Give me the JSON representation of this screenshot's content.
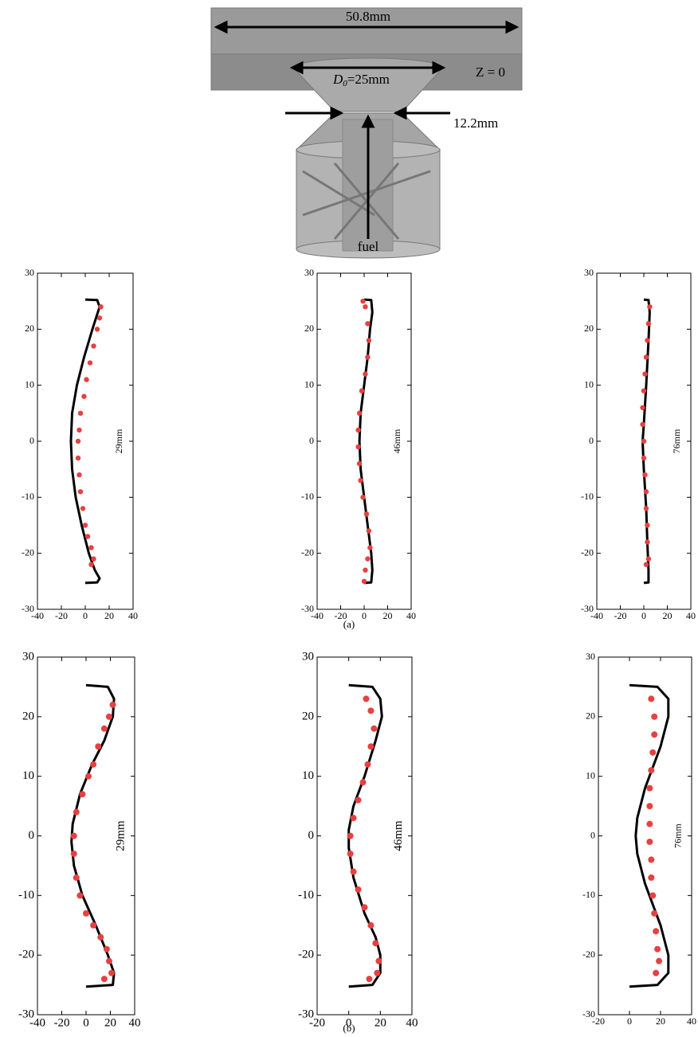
{
  "diagram": {
    "width": "50.8mm",
    "d_symbol": "D",
    "d_subscript": "0",
    "d_value": "=25mm",
    "plane": "Z = 0",
    "throat": "12.2mm",
    "inlet": "fuel"
  },
  "panel_labels": [
    "(a)",
    "(b)"
  ],
  "chart_data": [
    {
      "type": "scatter",
      "annotation": "29mm",
      "xlim": [
        -40,
        40
      ],
      "ylim": [
        -30,
        30
      ],
      "xticks": [
        -40,
        -20,
        0,
        20,
        40
      ],
      "yticks": [
        -30,
        -20,
        -10,
        0,
        10,
        20,
        30
      ],
      "series": [
        {
          "kind": "line",
          "color": "#000000",
          "x": [
            0,
            10,
            12,
            6,
            -1,
            -7,
            -11,
            -12,
            -11,
            -8,
            -3,
            3,
            8,
            12,
            10,
            0
          ],
          "y": [
            25.3,
            25.2,
            24,
            20,
            15,
            10,
            5,
            0,
            -5,
            -10,
            -15,
            -20,
            -23,
            -24.5,
            -25.2,
            -25.3
          ]
        },
        {
          "kind": "points",
          "color": "#e84040",
          "x": [
            13,
            12,
            10,
            7,
            4,
            1,
            -1,
            -4,
            -5,
            -6,
            -6,
            -5,
            -4,
            -2,
            0,
            2,
            5,
            7,
            5
          ],
          "y": [
            24,
            22,
            20,
            17,
            14,
            11,
            8,
            5,
            2,
            0,
            -3,
            -6,
            -9,
            -12,
            -15,
            -17,
            -19,
            -21,
            -22
          ]
        }
      ]
    },
    {
      "type": "scatter",
      "annotation": "46mm",
      "xlim": [
        -40,
        40
      ],
      "ylim": [
        -30,
        30
      ],
      "xticks": [
        -40,
        -20,
        0,
        20,
        40
      ],
      "yticks": [
        -30,
        -20,
        -10,
        0,
        10,
        20,
        30
      ],
      "series": [
        {
          "kind": "line",
          "color": "#000000",
          "x": [
            0,
            6,
            7,
            5,
            3,
            0,
            -3,
            -4,
            -3,
            0,
            3,
            6,
            7,
            6,
            0
          ],
          "y": [
            25.3,
            25.2,
            23,
            20,
            15,
            10,
            5,
            0,
            -5,
            -10,
            -15,
            -20,
            -23,
            -25.2,
            -25.3
          ]
        },
        {
          "kind": "points",
          "color": "#e84040",
          "x": [
            -1,
            1,
            3,
            4,
            3,
            1,
            -2,
            -4,
            -5,
            -5,
            -4,
            -3,
            -1,
            2,
            4,
            5,
            3,
            1,
            0
          ],
          "y": [
            25,
            24,
            21,
            18,
            15,
            12,
            9,
            5,
            2,
            -1,
            -4,
            -7,
            -10,
            -13,
            -16,
            -19,
            -21,
            -23,
            -25
          ]
        }
      ]
    },
    {
      "type": "scatter",
      "annotation": "76mm",
      "xlim": [
        -40,
        40
      ],
      "ylim": [
        -30,
        30
      ],
      "xticks": [
        -40,
        -20,
        0,
        20,
        40
      ],
      "yticks": [
        -30,
        -20,
        -10,
        0,
        10,
        20,
        30
      ],
      "series": [
        {
          "kind": "line",
          "color": "#000000",
          "x": [
            0,
            4,
            5,
            4,
            2,
            0,
            -1,
            0,
            2,
            3,
            4,
            4,
            0
          ],
          "y": [
            25.3,
            25.2,
            23,
            18,
            10,
            3,
            0,
            -5,
            -12,
            -18,
            -23,
            -25.2,
            -25.3
          ]
        },
        {
          "kind": "points",
          "color": "#e84040",
          "x": [
            5,
            4,
            3,
            2,
            1,
            0,
            -1,
            -1,
            0,
            0,
            1,
            2,
            2,
            3,
            3,
            4,
            2
          ],
          "y": [
            24,
            21,
            18,
            15,
            12,
            9,
            6,
            3,
            0,
            -3,
            -6,
            -9,
            -12,
            -15,
            -18,
            -21,
            -22
          ]
        }
      ]
    },
    {
      "type": "scatter",
      "annotation": "29mm",
      "xlim": [
        -40,
        40
      ],
      "ylim": [
        -30,
        30
      ],
      "xticks": [
        -40,
        -20,
        0,
        20,
        40
      ],
      "yticks": [
        -30,
        -20,
        -10,
        0,
        10,
        20,
        30
      ],
      "series": [
        {
          "kind": "line",
          "color": "#000000",
          "x": [
            0,
            18,
            23,
            22,
            15,
            5,
            -5,
            -11,
            -12,
            -10,
            -3,
            8,
            18,
            23,
            22,
            0
          ],
          "y": [
            25.3,
            25,
            23,
            20,
            16,
            12,
            7,
            2,
            -1,
            -5,
            -10,
            -15,
            -20,
            -23,
            -25,
            -25.3
          ]
        },
        {
          "kind": "points",
          "color": "#e84040",
          "x": [
            22,
            19,
            15,
            10,
            6,
            2,
            -3,
            -8,
            -10,
            -10,
            -8,
            -5,
            0,
            6,
            12,
            17,
            19,
            21,
            15
          ],
          "y": [
            22,
            20,
            18,
            15,
            12,
            10,
            7,
            4,
            0,
            -3,
            -7,
            -10,
            -13,
            -15,
            -17,
            -19,
            -21,
            -23,
            -24
          ]
        }
      ]
    },
    {
      "type": "scatter",
      "annotation": "46mm",
      "xlim": [
        -20,
        40
      ],
      "ylim": [
        -30,
        30
      ],
      "xticks": [
        -20,
        0,
        20,
        40
      ],
      "yticks": [
        -30,
        -20,
        -10,
        0,
        10,
        20,
        30
      ],
      "series": [
        {
          "kind": "line",
          "color": "#000000",
          "x": [
            0,
            15,
            20,
            21,
            17,
            10,
            3,
            0,
            0,
            3,
            10,
            17,
            20,
            20,
            15,
            0
          ],
          "y": [
            25.3,
            25,
            23,
            20,
            16,
            10,
            5,
            1,
            -2,
            -7,
            -13,
            -17,
            -20,
            -23,
            -25,
            -25.3
          ]
        },
        {
          "kind": "points",
          "color": "#e84040",
          "x": [
            11,
            14,
            16,
            14,
            12,
            9,
            6,
            3,
            1,
            1,
            3,
            6,
            10,
            14,
            17,
            19,
            18,
            13
          ],
          "y": [
            23,
            21,
            18,
            15,
            12,
            9,
            6,
            3,
            0,
            -3,
            -6,
            -9,
            -12,
            -15,
            -18,
            -21,
            -23,
            -24
          ]
        }
      ]
    },
    {
      "type": "scatter",
      "annotation": "76mm",
      "xlim": [
        -20,
        40
      ],
      "ylim": [
        -30,
        30
      ],
      "xticks": [
        -20,
        0,
        20,
        40
      ],
      "yticks": [
        -30,
        -20,
        -10,
        0,
        10,
        20,
        30
      ],
      "series": [
        {
          "kind": "line",
          "color": "#000000",
          "x": [
            0,
            18,
            25,
            25,
            20,
            10,
            5,
            4,
            5,
            10,
            20,
            25,
            25,
            18,
            0
          ],
          "y": [
            25.3,
            25,
            23,
            20,
            15,
            8,
            3,
            0,
            -3,
            -8,
            -15,
            -20,
            -23,
            -25,
            -25.3
          ]
        },
        {
          "kind": "points",
          "color": "#e84040",
          "x": [
            14,
            16,
            16,
            15,
            14,
            13,
            13,
            13,
            13,
            14,
            14,
            15,
            16,
            17,
            18,
            19,
            17
          ],
          "y": [
            23,
            20,
            17,
            14,
            11,
            8,
            5,
            2,
            -1,
            -4,
            -7,
            -10,
            -13,
            -16,
            -19,
            -21,
            -23
          ]
        }
      ]
    }
  ]
}
